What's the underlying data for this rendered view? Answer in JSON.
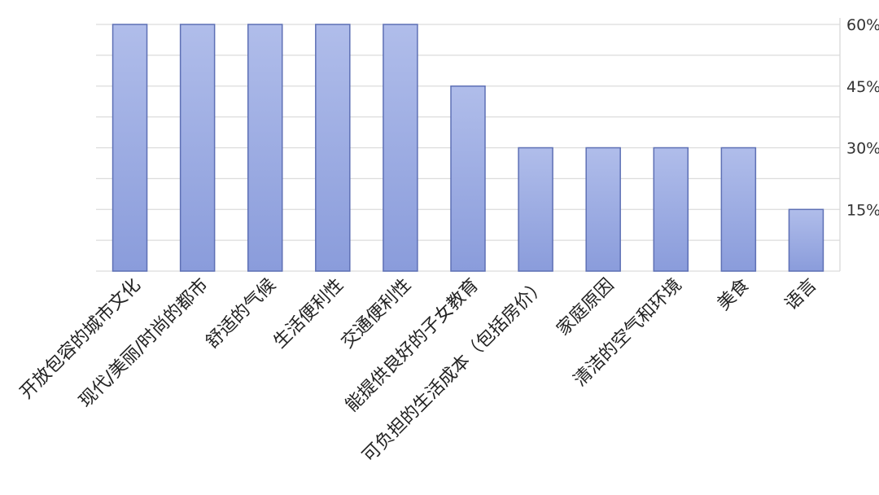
{
  "chart_data": {
    "type": "bar",
    "title": "",
    "xlabel": "",
    "ylabel": "",
    "categories": [
      "开放包容的城市文化",
      "现代/美丽/时尚的都市",
      "舒适的气候",
      "生活便利性",
      "交通便利性",
      "能提供良好的子女教育",
      "可负担的生活成本（包括房价）",
      "家庭原因",
      "清洁的空气和环境",
      "美食",
      "语言"
    ],
    "values": [
      60,
      60,
      60,
      60,
      60,
      45,
      30,
      30,
      30,
      30,
      15
    ],
    "ylim": [
      0,
      60
    ],
    "yticks": [
      15,
      30,
      45,
      60
    ],
    "ytick_labels": [
      "15%",
      "30%",
      "45%",
      "60%"
    ],
    "y_axis_side": "right",
    "grid": true,
    "bar_color_top": "#b0bdea",
    "bar_color_bottom": "#8a9cdb",
    "bar_border": "#5e70b5"
  }
}
